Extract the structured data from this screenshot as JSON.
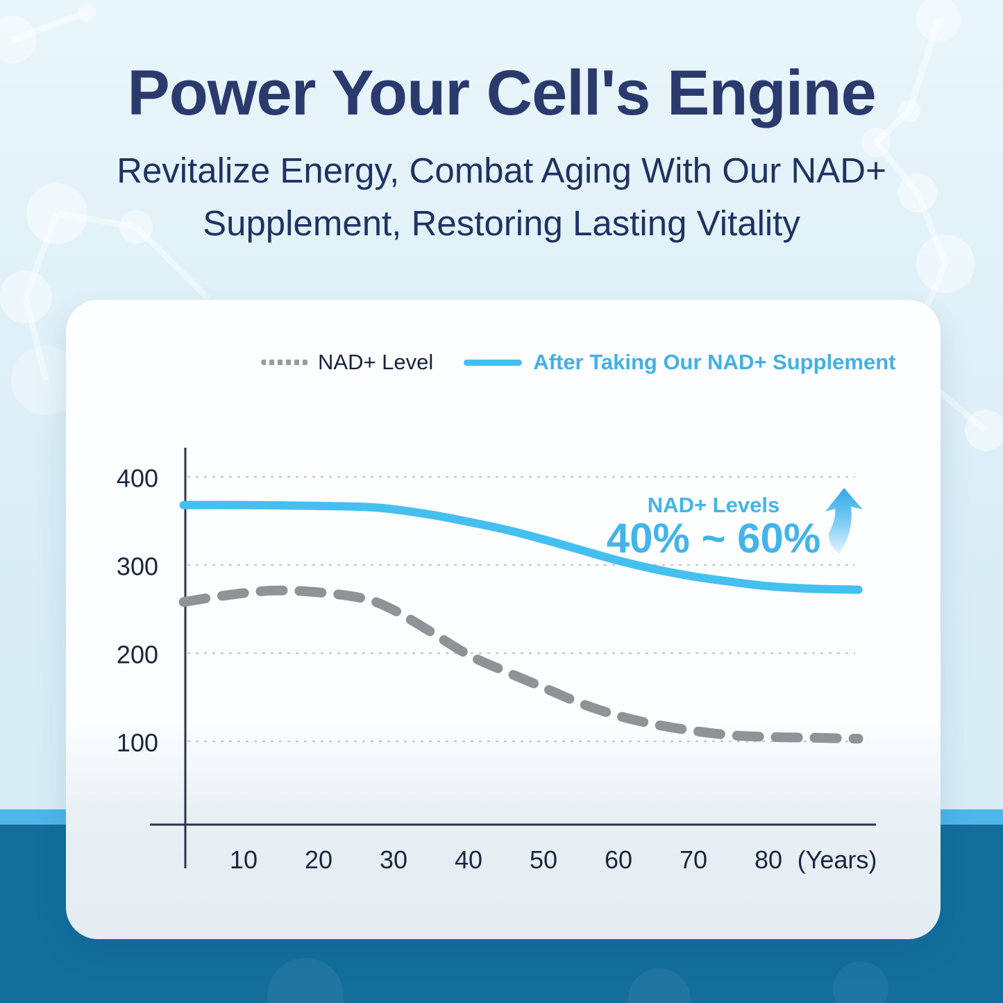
{
  "header": {
    "title": "Power Your Cell's Engine",
    "subtitle_line1": "Revitalize Energy, Combat Aging With Our NAD+",
    "subtitle_line2": "Supplement, Restoring Lasting Vitality"
  },
  "legend": {
    "nad_label": "NAD+ Level",
    "supplement_label": "After Taking Our NAD+ Supplement"
  },
  "annotation": {
    "line1": "NAD+ Levels",
    "line2": "40% ~ 60%"
  },
  "chart_data": {
    "type": "line",
    "title": "",
    "xlabel": "(Years)",
    "ylabel": "",
    "x_ticks": [
      "10",
      "20",
      "30",
      "40",
      "50",
      "60",
      "70",
      "80"
    ],
    "y_ticks": [
      "400",
      "300",
      "200",
      "100"
    ],
    "xlim": [
      2,
      92
    ],
    "ylim": [
      0,
      430
    ],
    "grid": "horizontal-dotted",
    "legend_position": "top",
    "series": [
      {
        "name": "NAD+ Level",
        "style": "dashed",
        "color": "#909396",
        "x": [
          2,
          8,
          14,
          20,
          26,
          30,
          35,
          40,
          45,
          50,
          55,
          60,
          65,
          70,
          75,
          80,
          86,
          92
        ],
        "values": [
          258,
          266,
          271,
          269,
          262,
          249,
          224,
          198,
          179,
          161,
          143,
          129,
          119,
          112,
          107,
          105,
          104,
          103
        ]
      },
      {
        "name": "After Taking Our NAD+ Supplement",
        "style": "solid",
        "color": "#45bfef",
        "x": [
          2,
          10,
          20,
          28,
          35,
          40,
          45,
          50,
          55,
          60,
          65,
          70,
          75,
          80,
          86,
          92
        ],
        "values": [
          368,
          368,
          367,
          365,
          357,
          349,
          340,
          329,
          317,
          305,
          295,
          287,
          281,
          276,
          273,
          272
        ]
      }
    ],
    "annotation_text": "NAD+ Levels 40% ~ 60%",
    "annotation_icon": "up-arrow"
  },
  "colors": {
    "title_navy": "#2a3a6d",
    "accent_blue": "#45bfef",
    "line_gray": "#909396",
    "band_sky": "#4db7ea",
    "band_deep": "#136e9c",
    "card_top": "#fdfeff",
    "card_bottom": "#e4ecf2"
  }
}
